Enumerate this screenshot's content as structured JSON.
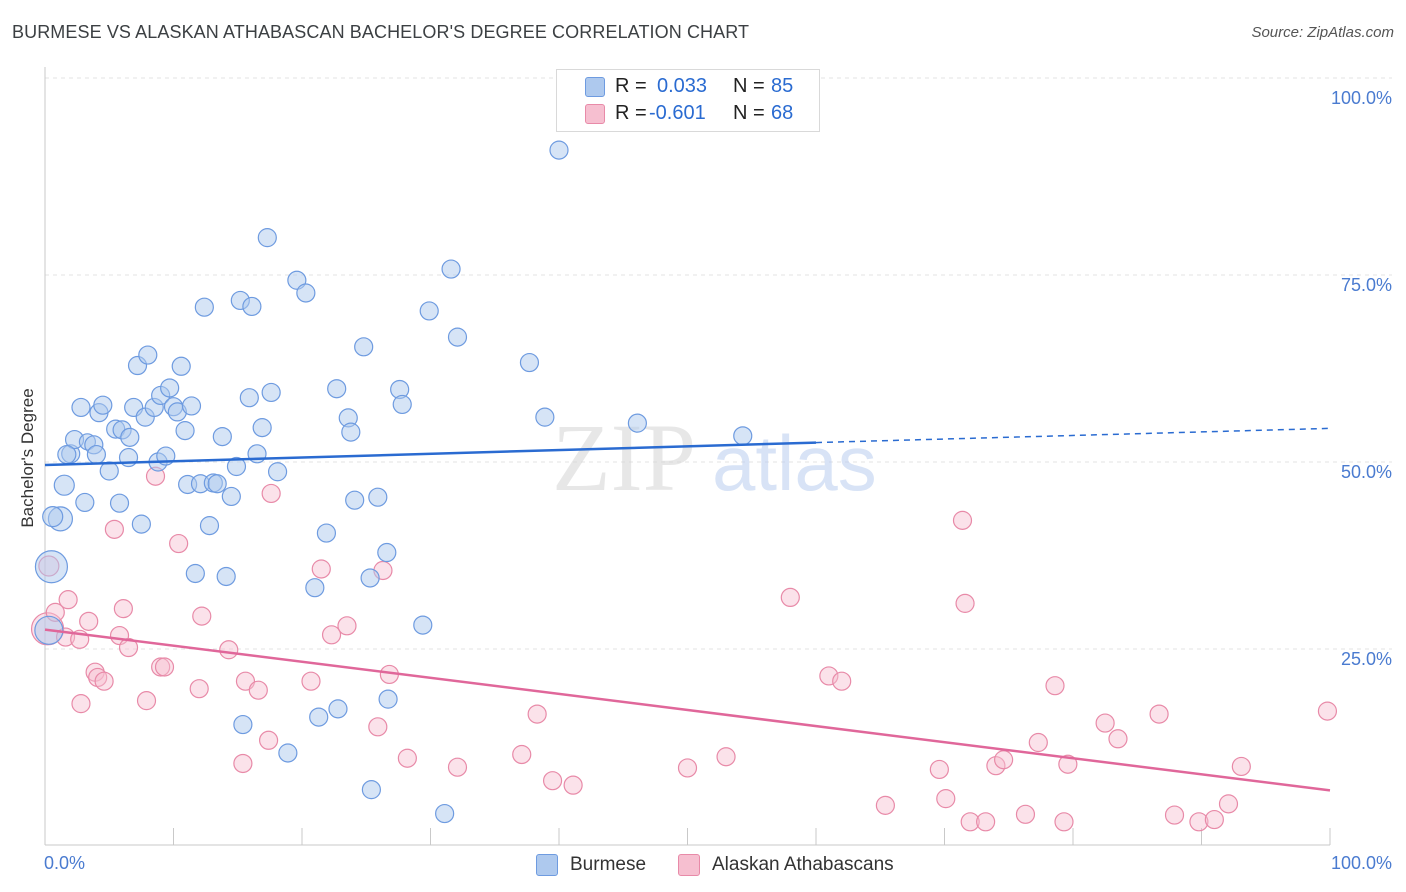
{
  "header": {
    "title": "BURMESE VS ALASKAN ATHABASCAN BACHELOR'S DEGREE CORRELATION CHART",
    "source": "Source: ZipAtlas.com"
  },
  "watermark": {
    "zip": "ZIP",
    "atlas": "atlas"
  },
  "legend": {
    "burmese": {
      "r_label": "R =",
      "r_value": "0.033",
      "n_label": "N =",
      "n_value": "85"
    },
    "alaskan": {
      "r_label": "R =",
      "r_value": "-0.601",
      "n_label": "N =",
      "n_value": "68"
    }
  },
  "bottom_legend": {
    "burmese": "Burmese",
    "alaskan": "Alaskan Athabascans"
  },
  "colors": {
    "burmese_fill": "#aec9ee",
    "burmese_stroke": "#6e9be0",
    "burmese_line": "#2a6bd1",
    "alaskan_fill": "#f6bfd0",
    "alaskan_stroke": "#e88aa8",
    "alaskan_line": "#e0679a",
    "tick_text": "#4a7bd0",
    "grid": "#e3e3e3"
  },
  "chart_data": {
    "type": "scatter",
    "title": "BURMESE VS ALASKAN ATHABASCAN BACHELOR'S DEGREE CORRELATION CHART",
    "xlabel": "",
    "ylabel": "Bachelor's Degree",
    "xlim": [
      0,
      100
    ],
    "ylim": [
      0,
      100
    ],
    "x_ticks": [
      0,
      100
    ],
    "x_tick_labels": [
      "0.0%",
      "100.0%"
    ],
    "y_ticks": [
      25,
      50,
      75,
      100
    ],
    "y_tick_labels": [
      "25.0%",
      "50.0%",
      "75.0%",
      "100.0%"
    ],
    "grid": "horizontal dashed",
    "legend_position": "top-center",
    "series": [
      {
        "name": "Burmese",
        "r": 0.033,
        "n": 85,
        "trend": {
          "x": [
            0,
            60
          ],
          "y": [
            50.8,
            53.8
          ],
          "dashed_to": [
            100,
            55.7
          ]
        },
        "points": [
          [
            0.5,
            37.2,
            16
          ],
          [
            1.2,
            43.6,
            12
          ],
          [
            1.5,
            48.1,
            10
          ],
          [
            2.0,
            52.3,
            9
          ],
          [
            2.3,
            54.2,
            9
          ],
          [
            2.8,
            58.5,
            9
          ],
          [
            3.1,
            45.8,
            9
          ],
          [
            3.3,
            53.9,
            8
          ],
          [
            3.8,
            53.5,
            9
          ],
          [
            4.0,
            52.2,
            9
          ],
          [
            4.2,
            57.8,
            9
          ],
          [
            4.5,
            58.8,
            9
          ],
          [
            5.0,
            50.0,
            9
          ],
          [
            5.5,
            55.6,
            9
          ],
          [
            5.8,
            45.7,
            9
          ],
          [
            6.0,
            55.5,
            9
          ],
          [
            6.5,
            51.8,
            9
          ],
          [
            6.6,
            54.5,
            9
          ],
          [
            6.9,
            58.5,
            9
          ],
          [
            7.2,
            64.1,
            9
          ],
          [
            7.5,
            42.9,
            9
          ],
          [
            7.8,
            57.2,
            9
          ],
          [
            8.0,
            65.5,
            9
          ],
          [
            8.5,
            58.5,
            9
          ],
          [
            8.8,
            51.2,
            9
          ],
          [
            9.0,
            60.1,
            9
          ],
          [
            9.4,
            52.0,
            9
          ],
          [
            9.7,
            61.1,
            9
          ],
          [
            10.0,
            58.6,
            9
          ],
          [
            10.3,
            57.9,
            9
          ],
          [
            10.6,
            64.0,
            9
          ],
          [
            10.9,
            55.4,
            9
          ],
          [
            11.1,
            48.2,
            9
          ],
          [
            11.4,
            58.7,
            9
          ],
          [
            11.7,
            36.3,
            9
          ],
          [
            12.1,
            48.3,
            9
          ],
          [
            12.4,
            71.9,
            9
          ],
          [
            12.8,
            42.7,
            9
          ],
          [
            13.1,
            48.4,
            9
          ],
          [
            13.4,
            48.3,
            9
          ],
          [
            13.8,
            54.6,
            9
          ],
          [
            14.1,
            35.9,
            9
          ],
          [
            14.5,
            46.6,
            9
          ],
          [
            14.9,
            50.6,
            9
          ],
          [
            15.2,
            72.8,
            9
          ],
          [
            15.4,
            16.1,
            9
          ],
          [
            15.9,
            59.8,
            9
          ],
          [
            16.1,
            72.0,
            9
          ],
          [
            16.5,
            52.3,
            9
          ],
          [
            16.9,
            55.8,
            9
          ],
          [
            17.3,
            81.2,
            9
          ],
          [
            17.6,
            60.5,
            9
          ],
          [
            18.1,
            49.9,
            9
          ],
          [
            18.9,
            12.3,
            9
          ],
          [
            19.6,
            75.5,
            9
          ],
          [
            20.3,
            73.8,
            9
          ],
          [
            21.0,
            34.4,
            9
          ],
          [
            21.3,
            17.1,
            9
          ],
          [
            21.9,
            41.7,
            9
          ],
          [
            22.7,
            61.0,
            9
          ],
          [
            22.8,
            18.2,
            9
          ],
          [
            23.6,
            57.1,
            9
          ],
          [
            23.8,
            55.2,
            9
          ],
          [
            24.1,
            46.1,
            9
          ],
          [
            24.8,
            66.6,
            9
          ],
          [
            25.3,
            35.7,
            9
          ],
          [
            25.4,
            7.4,
            9
          ],
          [
            25.9,
            46.5,
            9
          ],
          [
            26.6,
            39.1,
            9
          ],
          [
            26.7,
            19.5,
            9
          ],
          [
            27.6,
            60.9,
            9
          ],
          [
            27.8,
            58.9,
            9
          ],
          [
            29.4,
            29.4,
            9
          ],
          [
            29.9,
            71.4,
            9
          ],
          [
            31.1,
            4.2,
            9
          ],
          [
            31.6,
            77.0,
            9
          ],
          [
            32.1,
            67.9,
            9
          ],
          [
            37.7,
            64.5,
            9
          ],
          [
            38.9,
            57.2,
            9
          ],
          [
            40.0,
            92.9,
            9
          ],
          [
            46.1,
            56.4,
            9
          ],
          [
            54.3,
            54.7,
            9
          ],
          [
            0.3,
            28.7,
            14
          ],
          [
            0.6,
            43.9,
            10
          ],
          [
            1.7,
            52.2,
            9
          ]
        ]
      },
      {
        "name": "Alaskan Athabascans",
        "r": -0.601,
        "n": 68,
        "trend": {
          "x": [
            0,
            100
          ],
          "y": [
            28.8,
            7.3
          ]
        },
        "points": [
          [
            0.2,
            28.9,
            16
          ],
          [
            0.3,
            37.3,
            10
          ],
          [
            0.8,
            31.1,
            9
          ],
          [
            1.6,
            27.8,
            9
          ],
          [
            1.8,
            32.8,
            9
          ],
          [
            2.7,
            27.5,
            9
          ],
          [
            2.8,
            18.9,
            9
          ],
          [
            3.4,
            29.9,
            9
          ],
          [
            3.9,
            23.1,
            9
          ],
          [
            4.1,
            22.4,
            9
          ],
          [
            4.6,
            21.9,
            9
          ],
          [
            5.4,
            42.2,
            9
          ],
          [
            5.8,
            28.0,
            9
          ],
          [
            6.1,
            31.6,
            9
          ],
          [
            6.5,
            26.4,
            9
          ],
          [
            7.9,
            19.3,
            9
          ],
          [
            8.6,
            49.3,
            9
          ],
          [
            9.0,
            23.8,
            9
          ],
          [
            9.3,
            23.8,
            9
          ],
          [
            10.4,
            40.3,
            9
          ],
          [
            12.0,
            20.9,
            9
          ],
          [
            12.2,
            30.6,
            9
          ],
          [
            14.3,
            26.1,
            9
          ],
          [
            15.4,
            10.9,
            9
          ],
          [
            15.6,
            21.9,
            9
          ],
          [
            16.6,
            20.7,
            9
          ],
          [
            17.4,
            14.0,
            9
          ],
          [
            17.6,
            47.0,
            9
          ],
          [
            20.7,
            21.9,
            9
          ],
          [
            21.5,
            36.9,
            9
          ],
          [
            22.3,
            28.1,
            9
          ],
          [
            23.5,
            29.3,
            9
          ],
          [
            25.9,
            15.8,
            9
          ],
          [
            26.3,
            36.7,
            9
          ],
          [
            26.8,
            22.8,
            9
          ],
          [
            28.2,
            11.6,
            9
          ],
          [
            32.1,
            10.4,
            9
          ],
          [
            37.1,
            12.1,
            9
          ],
          [
            38.3,
            17.5,
            9
          ],
          [
            39.5,
            8.6,
            9
          ],
          [
            41.1,
            8.0,
            9
          ],
          [
            50.0,
            10.3,
            9
          ],
          [
            53.0,
            11.8,
            9
          ],
          [
            58.0,
            33.1,
            9
          ],
          [
            61.0,
            22.6,
            9
          ],
          [
            62.0,
            21.9,
            9
          ],
          [
            65.4,
            5.3,
            9
          ],
          [
            69.6,
            10.1,
            9
          ],
          [
            70.1,
            6.2,
            9
          ],
          [
            71.4,
            43.4,
            9
          ],
          [
            71.6,
            32.3,
            9
          ],
          [
            72.0,
            3.1,
            9
          ],
          [
            73.2,
            3.1,
            9
          ],
          [
            74.0,
            10.6,
            9
          ],
          [
            74.6,
            11.4,
            9
          ],
          [
            76.3,
            4.1,
            9
          ],
          [
            77.3,
            13.7,
            9
          ],
          [
            78.6,
            21.3,
            9
          ],
          [
            79.3,
            3.1,
            9
          ],
          [
            79.6,
            10.8,
            9
          ],
          [
            82.5,
            16.3,
            9
          ],
          [
            83.5,
            14.2,
            9
          ],
          [
            86.7,
            17.5,
            9
          ],
          [
            87.9,
            4.0,
            9
          ],
          [
            89.8,
            3.1,
            9
          ],
          [
            91.0,
            3.4,
            9
          ],
          [
            92.1,
            5.5,
            9
          ],
          [
            93.1,
            10.5,
            9
          ]
        ]
      }
    ],
    "extra_points": {
      "alaskan": [
        [
          99.8,
          17.9,
          9
        ]
      ]
    }
  }
}
